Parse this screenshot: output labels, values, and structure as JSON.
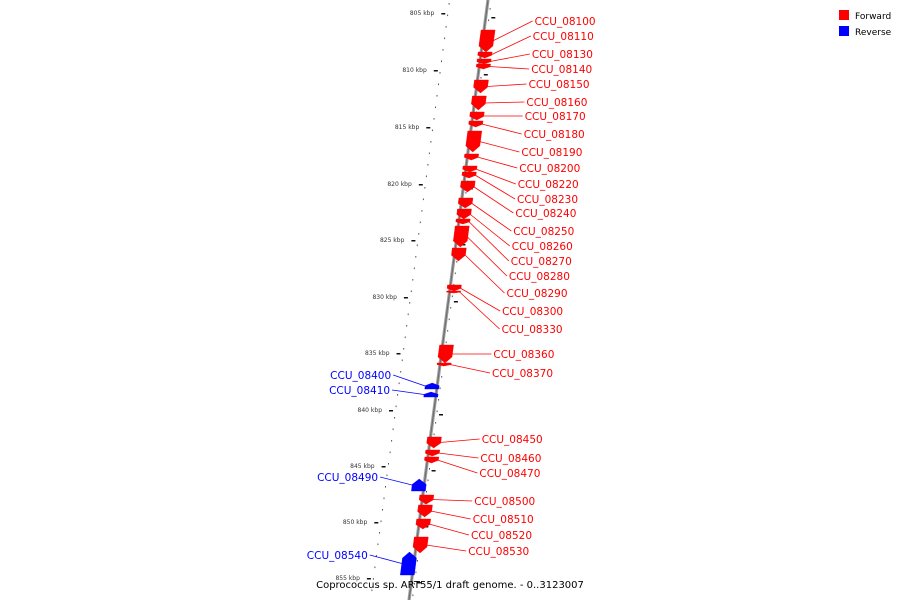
{
  "caption": "Coprococcus sp. ART55/1 draft genome. - 0..3123007",
  "legend": {
    "forward": {
      "label": "Forward",
      "color": "#ff0000"
    },
    "reverse": {
      "label": "Reverse",
      "color": "#0000ff"
    }
  },
  "ticks": [
    "805 kbp",
    "810 kbp",
    "815 kbp",
    "820 kbp",
    "825 kbp",
    "830 kbp",
    "835 kbp",
    "840 kbp",
    "845 kbp",
    "850 kbp",
    "855 kbp"
  ],
  "genes": [
    {
      "name": "CCU_08100",
      "strand": "forward"
    },
    {
      "name": "CCU_08110",
      "strand": "forward"
    },
    {
      "name": "CCU_08130",
      "strand": "forward"
    },
    {
      "name": "CCU_08140",
      "strand": "forward"
    },
    {
      "name": "CCU_08150",
      "strand": "forward"
    },
    {
      "name": "CCU_08160",
      "strand": "forward"
    },
    {
      "name": "CCU_08170",
      "strand": "forward"
    },
    {
      "name": "CCU_08180",
      "strand": "forward"
    },
    {
      "name": "CCU_08190",
      "strand": "forward"
    },
    {
      "name": "CCU_08200",
      "strand": "forward"
    },
    {
      "name": "CCU_08220",
      "strand": "forward"
    },
    {
      "name": "CCU_08230",
      "strand": "forward"
    },
    {
      "name": "CCU_08240",
      "strand": "forward"
    },
    {
      "name": "CCU_08250",
      "strand": "forward"
    },
    {
      "name": "CCU_08260",
      "strand": "forward"
    },
    {
      "name": "CCU_08270",
      "strand": "forward"
    },
    {
      "name": "CCU_08280",
      "strand": "forward"
    },
    {
      "name": "CCU_08290",
      "strand": "forward"
    },
    {
      "name": "CCU_08300",
      "strand": "forward"
    },
    {
      "name": "CCU_08330",
      "strand": "forward"
    },
    {
      "name": "CCU_08360",
      "strand": "forward"
    },
    {
      "name": "CCU_08370",
      "strand": "forward"
    },
    {
      "name": "CCU_08400",
      "strand": "reverse"
    },
    {
      "name": "CCU_08410",
      "strand": "reverse"
    },
    {
      "name": "CCU_08450",
      "strand": "forward"
    },
    {
      "name": "CCU_08460",
      "strand": "forward"
    },
    {
      "name": "CCU_08470",
      "strand": "forward"
    },
    {
      "name": "CCU_08490",
      "strand": "reverse"
    },
    {
      "name": "CCU_08500",
      "strand": "forward"
    },
    {
      "name": "CCU_08510",
      "strand": "forward"
    },
    {
      "name": "CCU_08520",
      "strand": "forward"
    },
    {
      "name": "CCU_08530",
      "strand": "forward"
    },
    {
      "name": "CCU_08540",
      "strand": "reverse"
    }
  ]
}
